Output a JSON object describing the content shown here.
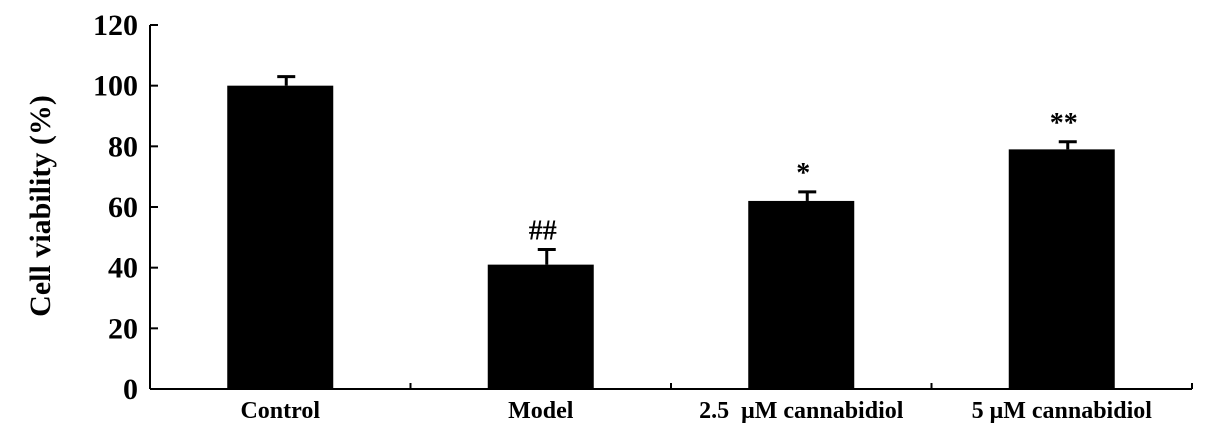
{
  "chart_data": {
    "type": "bar",
    "title": "",
    "xlabel": "",
    "ylabel": "Cell viability (%)",
    "ylim": [
      0,
      120
    ],
    "yticks": [
      0,
      20,
      40,
      60,
      80,
      100,
      120
    ],
    "grid": false,
    "categories": [
      "Control",
      "Model",
      "2.5  μM cannabidiol",
      "5 μM cannabidiol"
    ],
    "values": [
      100,
      41,
      62,
      79
    ],
    "errors": [
      3,
      5,
      3,
      2.5
    ],
    "annotations": [
      "",
      "##",
      "*",
      "**"
    ],
    "bar_color": "#000000"
  }
}
